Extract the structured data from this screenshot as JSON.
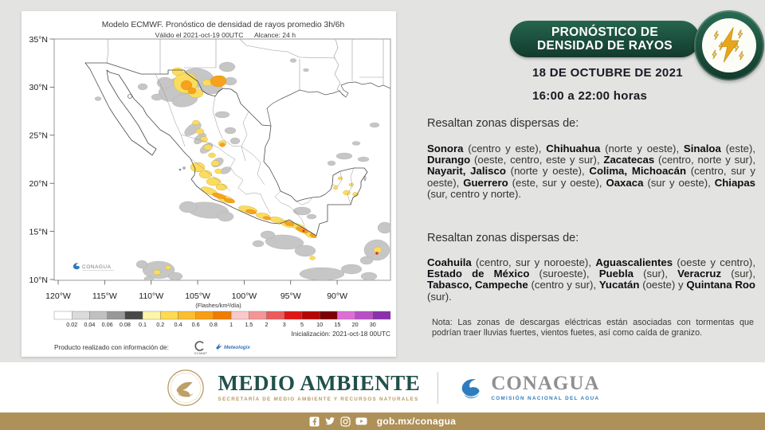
{
  "map": {
    "title": "Modelo ECMWF. Pronóstico de densidad de rayos promedio 3h/6h",
    "subtitle_valid": "Válido el 2021-oct-19 00UTC",
    "subtitle_range": "Alcance: 24 h",
    "lat_ticks": [
      "35°N",
      "30°N",
      "25°N",
      "20°N",
      "15°N",
      "10°N"
    ],
    "lon_ticks": [
      "120°W",
      "115°W",
      "110°W",
      "105°W",
      "100°W",
      "95°W",
      "90°W"
    ],
    "unit_label": "(Flashes/km²/día)",
    "legend": {
      "values": [
        "0.02",
        "0.04",
        "0.06",
        "0.08",
        "0.1",
        "0.2",
        "0.4",
        "0.6",
        "0.8",
        "1",
        "1.5",
        "2",
        "3",
        "5",
        "10",
        "15",
        "20",
        "30"
      ],
      "colors": [
        "#ffffff",
        "#dbdbdb",
        "#c0c0c0",
        "#989898",
        "#484848",
        "#fdf6a8",
        "#fdda50",
        "#fcbe2e",
        "#f99e12",
        "#f17c00",
        "#fac8c8",
        "#f59595",
        "#ec5b5b",
        "#e11515",
        "#b60505",
        "#7e0000",
        "#dc6ed6",
        "#b94fc6",
        "#8c30ae"
      ]
    },
    "init_label": "Inicialización: 2021-oct-18 00UTC",
    "product_label": "Producto realizado con información de:",
    "sources": [
      "ECMWF",
      "Meteologix"
    ],
    "watermark": "CONAGUA"
  },
  "panel": {
    "header_line1": "PRONÓSTICO DE",
    "header_line2": "DENSIDAD DE RAYOS",
    "date": "18 DE OCTUBRE DE 2021",
    "time": "16:00 a 22:00 horas",
    "section1_lead": "Resaltan zonas dispersas de:",
    "section1_segments": [
      {
        "t": "Sonora",
        "b": true
      },
      {
        "t": " (centro y este), "
      },
      {
        "t": "Chihuahua",
        "b": true
      },
      {
        "t": " (norte y oeste), "
      },
      {
        "t": "Sinaloa",
        "b": true
      },
      {
        "t": " (este), "
      },
      {
        "t": "Durango",
        "b": true
      },
      {
        "t": " (oeste, centro, este y sur), "
      },
      {
        "t": "Zacatecas",
        "b": true
      },
      {
        "t": " (centro, norte y sur), "
      },
      {
        "t": "Nayarit, Jalisco",
        "b": true
      },
      {
        "t": " (norte y oeste), "
      },
      {
        "t": "Colima, Michoacán",
        "b": true
      },
      {
        "t": " (centro, sur y oeste), "
      },
      {
        "t": "Guerrero",
        "b": true
      },
      {
        "t": " (este, sur y oeste), "
      },
      {
        "t": "Oaxaca",
        "b": true
      },
      {
        "t": " (sur y oeste), "
      },
      {
        "t": "Chiapas",
        "b": true
      },
      {
        "t": " (sur, centro y norte)."
      }
    ],
    "section2_lead": "Resaltan zonas dispersas de:",
    "section2_segments": [
      {
        "t": "Coahuila",
        "b": true
      },
      {
        "t": " (centro, sur y noroeste), "
      },
      {
        "t": "Aguascalientes",
        "b": true
      },
      {
        "t": " (oeste y centro), "
      },
      {
        "t": "Estado de México",
        "b": true
      },
      {
        "t": " (suroeste), "
      },
      {
        "t": "Puebla",
        "b": true
      },
      {
        "t": " (sur), "
      },
      {
        "t": "Veracruz",
        "b": true
      },
      {
        "t": " (sur), "
      },
      {
        "t": "Tabasco, Campeche",
        "b": true
      },
      {
        "t": " (centro y sur), "
      },
      {
        "t": "Yucatán",
        "b": true
      },
      {
        "t": " (oeste) y "
      },
      {
        "t": "Quintana Roo",
        "b": true
      },
      {
        "t": " (sur)."
      }
    ],
    "note": "Nota: Las zonas de descargas eléctricas están asociadas con tormentas que podrían traer lluvias fuertes, vientos fuetes, así como caída de granizo."
  },
  "footer": {
    "medio_ambiente": "MEDIO AMBIENTE",
    "medio_ambiente_sub": "SECRETARÍA DE MEDIO AMBIENTE Y RECURSOS NATURALES",
    "conagua": "CONAGUA",
    "conagua_sub": "COMISIÓN NACIONAL DEL AGUA"
  },
  "bottombar": {
    "url": "gob.mx/conagua",
    "icons": [
      "facebook",
      "twitter",
      "instagram",
      "youtube"
    ]
  },
  "colors": {
    "green_dark": "#123a2d",
    "green": "#26654e",
    "tan_bar": "#ae9059",
    "gold": "#b99a5f",
    "conagua_blue": "#2f7dbe",
    "bolt_gold": "#e8a61b"
  }
}
